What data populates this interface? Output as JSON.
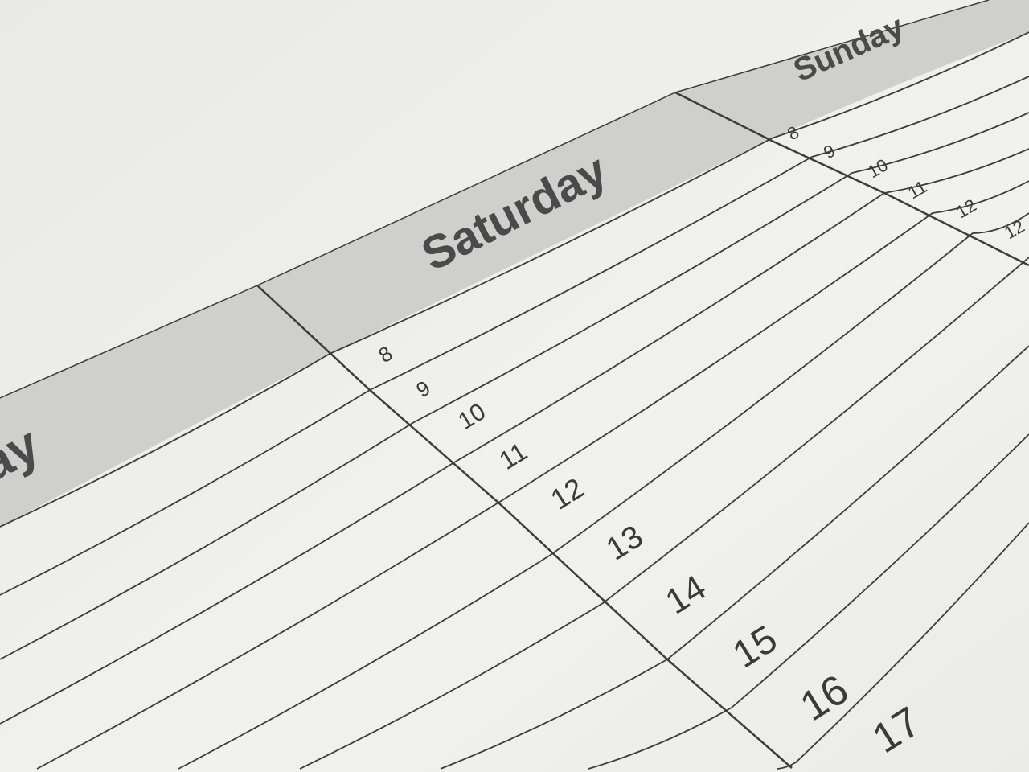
{
  "calendar": {
    "days": [
      "ay",
      "Saturday",
      "Sunday"
    ],
    "saturday_hours": [
      "8",
      "9",
      "10",
      "11",
      "12",
      "13",
      "14",
      "15",
      "16",
      "17"
    ],
    "sunday_hours": [
      "8",
      "9",
      "10",
      "11",
      "12",
      "12"
    ],
    "colors": {
      "paper": "#eeeeec",
      "header_band": "#cfcfcd",
      "lines": "#3c3c3c",
      "text": "#4a4a4a"
    }
  }
}
